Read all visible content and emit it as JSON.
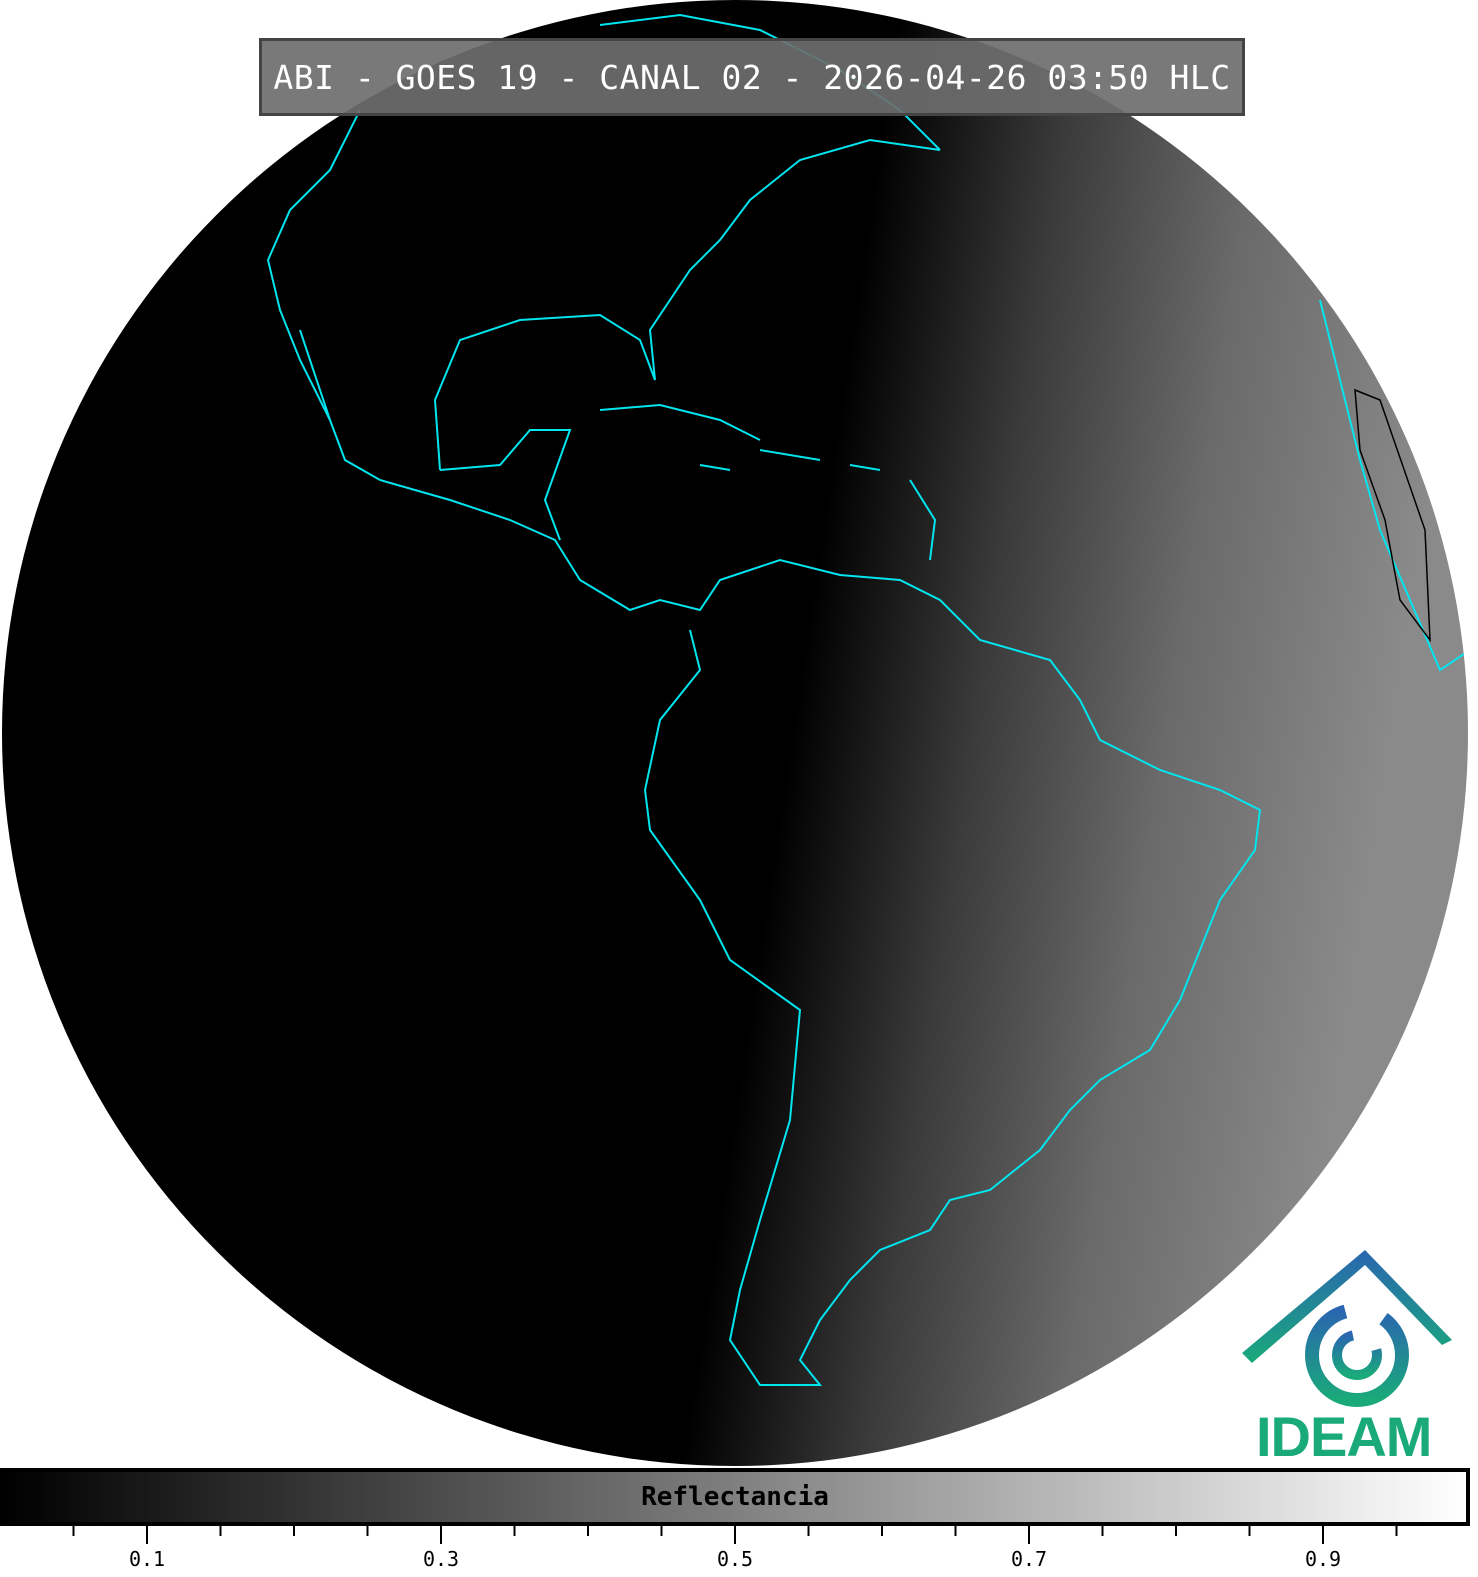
{
  "title": "ABI - GOES 19 - CANAL 02 - 2026-04-26 03:50 HLC",
  "colorbar": {
    "label": "Reflectancia",
    "range": [
      0,
      1
    ],
    "major_ticks": [
      "0.1",
      "0.3",
      "0.5",
      "0.7",
      "0.9"
    ],
    "minor_step": 0.05
  },
  "logo": {
    "text": "IDEAM",
    "color": "#1aaa7a"
  },
  "colors": {
    "coastline": "#00e5ee",
    "space": "#ffffff",
    "night": "#000000"
  }
}
